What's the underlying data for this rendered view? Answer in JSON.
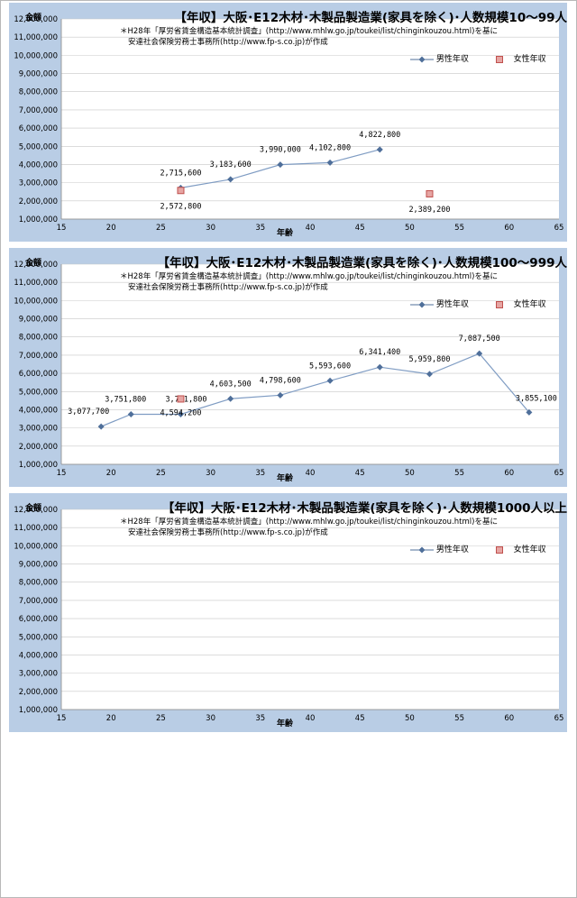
{
  "chart_data": [
    {
      "type": "line",
      "title": "【年収】大阪･E12木材･木製品製造業(家具を除く)･人数規模10～99人",
      "ylabel": "金額",
      "xlabel": "年齢",
      "note_line1": "＊H28年「厚労省賃金構造基本統計調査」(http://www.mhlw.go.jp/toukei/list/chinginkouzou.html)を基に",
      "note_line2": "安達社会保険労務士事務所(http://www.fp-s.co.jp)が作成",
      "xlim": [
        15,
        65
      ],
      "ylim": [
        1000000,
        12000000
      ],
      "x_ticks": [
        15,
        20,
        25,
        30,
        35,
        40,
        45,
        50,
        55,
        60,
        65
      ],
      "y_ticks": [
        1000000,
        2000000,
        3000000,
        4000000,
        5000000,
        6000000,
        7000000,
        8000000,
        9000000,
        10000000,
        11000000,
        12000000
      ],
      "y_tick_labels": [
        "1,000,000",
        "2,000,000",
        "3,000,000",
        "4,000,000",
        "5,000,000",
        "6,000,000",
        "7,000,000",
        "8,000,000",
        "9,000,000",
        "10,000,000",
        "11,000,000",
        "12,000,000"
      ],
      "legend_placement": "top-right",
      "grid": "horizontal",
      "series": [
        {
          "name": "男性年収",
          "color": "#4f6f9a",
          "x": [
            27,
            32,
            37,
            42,
            47
          ],
          "values": [
            2715600,
            3183600,
            3990000,
            4102800,
            4822800
          ],
          "labels": [
            "2,715,600",
            "3,183,600",
            "3,990,000",
            "4,102,800",
            "4,822,800"
          ]
        },
        {
          "name": "女性年収",
          "color": "#c0504d",
          "x": [
            27,
            52
          ],
          "values": [
            2572800,
            2389200
          ],
          "labels": [
            "2,572,800",
            "2,389,200"
          ]
        }
      ]
    },
    {
      "type": "line",
      "title": "【年収】大阪･E12木材･木製品製造業(家具を除く)･人数規模100～999人",
      "ylabel": "金額",
      "xlabel": "年齢",
      "note_line1": "＊H28年「厚労省賃金構造基本統計調査」(http://www.mhlw.go.jp/toukei/list/chinginkouzou.html)を基に",
      "note_line2": "安達社会保険労務士事務所(http://www.fp-s.co.jp)が作成",
      "xlim": [
        15,
        65
      ],
      "ylim": [
        1000000,
        12000000
      ],
      "x_ticks": [
        15,
        20,
        25,
        30,
        35,
        40,
        45,
        50,
        55,
        60,
        65
      ],
      "y_ticks": [
        1000000,
        2000000,
        3000000,
        4000000,
        5000000,
        6000000,
        7000000,
        8000000,
        9000000,
        10000000,
        11000000,
        12000000
      ],
      "y_tick_labels": [
        "1,000,000",
        "2,000,000",
        "3,000,000",
        "4,000,000",
        "5,000,000",
        "6,000,000",
        "7,000,000",
        "8,000,000",
        "9,000,000",
        "10,000,000",
        "11,000,000",
        "12,000,000"
      ],
      "legend_placement": "top-right",
      "grid": "horizontal",
      "series": [
        {
          "name": "男性年収",
          "color": "#4f6f9a",
          "x": [
            19,
            22,
            27,
            32,
            37,
            42,
            47,
            52,
            57,
            62
          ],
          "values": [
            3077700,
            3751800,
            3751800,
            4603500,
            4798600,
            5593600,
            6341400,
            5959800,
            7087500,
            3855100
          ],
          "labels": [
            "3,077,700",
            "3,751,800",
            "3,751,800",
            "4,603,500",
            "4,798,600",
            "5,593,600",
            "6,341,400",
            "5,959,800",
            "7,087,500",
            "3,855,100"
          ]
        },
        {
          "name": "女性年収",
          "color": "#c0504d",
          "x": [
            27
          ],
          "values": [
            4594200
          ],
          "labels": [
            "4,594,200"
          ]
        }
      ]
    },
    {
      "type": "line",
      "title": "【年収】大阪･E12木材･木製品製造業(家具を除く)･人数規模1000人以上",
      "ylabel": "金額",
      "xlabel": "年齢",
      "note_line1": "＊H28年「厚労省賃金構造基本統計調査」(http://www.mhlw.go.jp/toukei/list/chinginkouzou.html)を基に",
      "note_line2": "安達社会保険労務士事務所(http://www.fp-s.co.jp)が作成",
      "xlim": [
        15,
        65
      ],
      "ylim": [
        1000000,
        12000000
      ],
      "x_ticks": [
        15,
        20,
        25,
        30,
        35,
        40,
        45,
        50,
        55,
        60,
        65
      ],
      "y_ticks": [
        1000000,
        2000000,
        3000000,
        4000000,
        5000000,
        6000000,
        7000000,
        8000000,
        9000000,
        10000000,
        11000000,
        12000000
      ],
      "y_tick_labels": [
        "1,000,000",
        "2,000,000",
        "3,000,000",
        "4,000,000",
        "5,000,000",
        "6,000,000",
        "7,000,000",
        "8,000,000",
        "9,000,000",
        "10,000,000",
        "11,000,000",
        "12,000,000"
      ],
      "legend_placement": "top-right",
      "grid": "horizontal",
      "series": [
        {
          "name": "男性年収",
          "color": "#4f6f9a",
          "x": [],
          "values": [],
          "labels": []
        },
        {
          "name": "女性年収",
          "color": "#c0504d",
          "x": [],
          "values": [],
          "labels": []
        }
      ]
    }
  ]
}
